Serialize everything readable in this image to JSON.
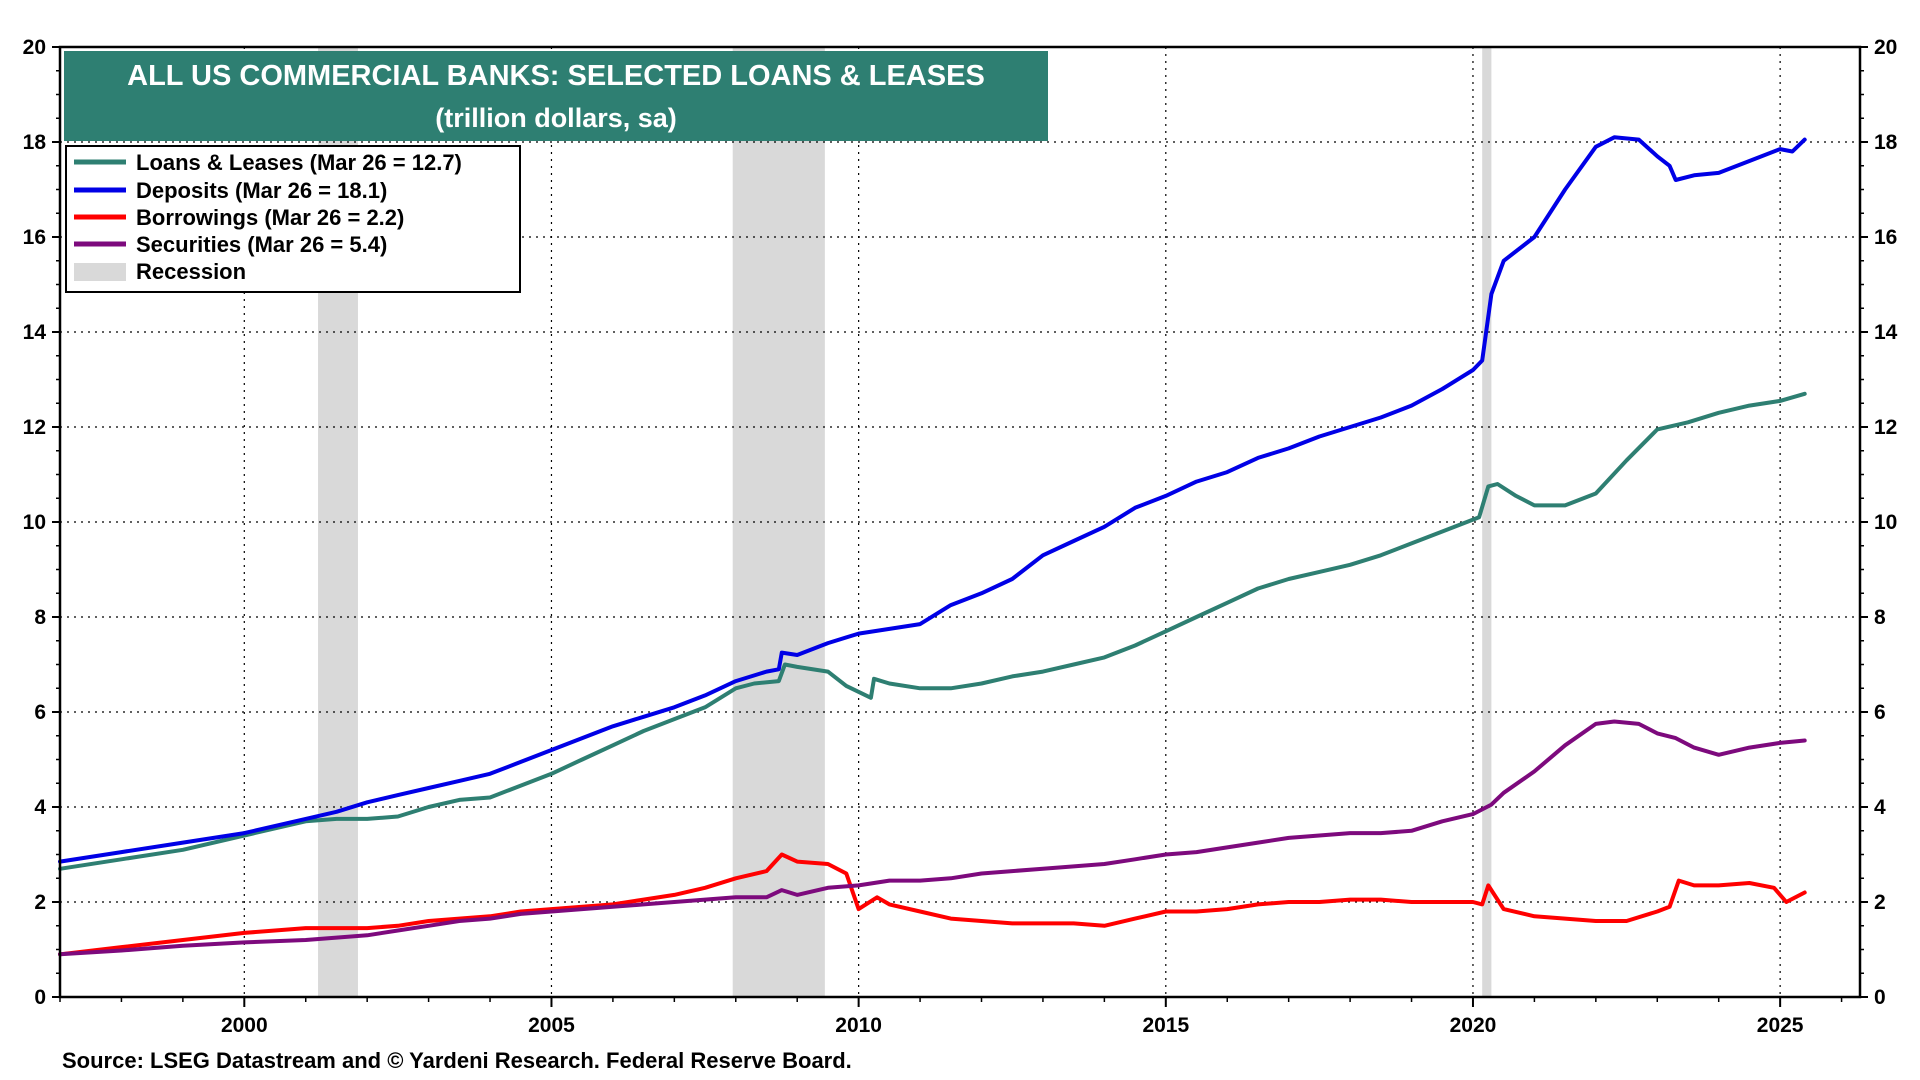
{
  "chart_data": {
    "type": "line",
    "title": "ALL US COMMERCIAL BANKS: SELECTED LOANS & LEASES",
    "subtitle": "(trillion dollars, sa)",
    "source": "Source: LSEG Datastream and © Yardeni Research. Federal Reserve Board.",
    "xlim": [
      1997.0,
      2026.3
    ],
    "ylim": [
      0,
      20
    ],
    "x_ticks": [
      2000,
      2005,
      2010,
      2015,
      2020,
      2025
    ],
    "x_tick_labels": [
      "2000",
      "2005",
      "2010",
      "2015",
      "2020",
      "2025"
    ],
    "y_ticks": [
      0,
      2,
      4,
      6,
      8,
      10,
      12,
      14,
      16,
      18,
      20
    ],
    "y_tick_labels": [
      "0",
      "2",
      "4",
      "6",
      "8",
      "10",
      "12",
      "14",
      "16",
      "18",
      "20"
    ],
    "grid": true,
    "legend_position": "top-left",
    "recessions": [
      [
        2001.2,
        2001.85
      ],
      [
        2007.95,
        2009.45
      ],
      [
        2020.15,
        2020.3
      ]
    ],
    "recession_label": "Recession",
    "recession_color": "#d9d9d9",
    "series": [
      {
        "name": "Loans & Leases (Mar 26 = 12.7)",
        "color": "#2e7f72",
        "points": [
          [
            1997.0,
            2.7
          ],
          [
            1998.0,
            2.9
          ],
          [
            1999.0,
            3.1
          ],
          [
            2000.0,
            3.4
          ],
          [
            2001.0,
            3.7
          ],
          [
            2001.5,
            3.75
          ],
          [
            2002.0,
            3.75
          ],
          [
            2002.5,
            3.8
          ],
          [
            2003.0,
            4.0
          ],
          [
            2003.5,
            4.15
          ],
          [
            2004.0,
            4.2
          ],
          [
            2004.5,
            4.45
          ],
          [
            2005.0,
            4.7
          ],
          [
            2005.5,
            5.0
          ],
          [
            2006.0,
            5.3
          ],
          [
            2006.5,
            5.6
          ],
          [
            2007.0,
            5.85
          ],
          [
            2007.5,
            6.1
          ],
          [
            2008.0,
            6.5
          ],
          [
            2008.3,
            6.6
          ],
          [
            2008.7,
            6.65
          ],
          [
            2008.8,
            7.0
          ],
          [
            2009.0,
            6.95
          ],
          [
            2009.5,
            6.85
          ],
          [
            2009.8,
            6.55
          ],
          [
            2010.2,
            6.3
          ],
          [
            2010.25,
            6.7
          ],
          [
            2010.5,
            6.6
          ],
          [
            2011.0,
            6.5
          ],
          [
            2011.5,
            6.5
          ],
          [
            2012.0,
            6.6
          ],
          [
            2012.5,
            6.75
          ],
          [
            2013.0,
            6.85
          ],
          [
            2013.5,
            7.0
          ],
          [
            2014.0,
            7.15
          ],
          [
            2014.5,
            7.4
          ],
          [
            2015.0,
            7.7
          ],
          [
            2015.5,
            8.0
          ],
          [
            2016.0,
            8.3
          ],
          [
            2016.5,
            8.6
          ],
          [
            2017.0,
            8.8
          ],
          [
            2017.5,
            8.95
          ],
          [
            2018.0,
            9.1
          ],
          [
            2018.5,
            9.3
          ],
          [
            2019.0,
            9.55
          ],
          [
            2019.5,
            9.8
          ],
          [
            2020.0,
            10.05
          ],
          [
            2020.1,
            10.1
          ],
          [
            2020.25,
            10.75
          ],
          [
            2020.4,
            10.8
          ],
          [
            2020.7,
            10.55
          ],
          [
            2021.0,
            10.35
          ],
          [
            2021.5,
            10.35
          ],
          [
            2022.0,
            10.6
          ],
          [
            2022.5,
            11.3
          ],
          [
            2023.0,
            11.95
          ],
          [
            2023.5,
            12.1
          ],
          [
            2024.0,
            12.3
          ],
          [
            2024.5,
            12.45
          ],
          [
            2025.0,
            12.55
          ],
          [
            2025.4,
            12.7
          ]
        ]
      },
      {
        "name": "Deposits (Mar 26 = 18.1)",
        "color": "#0000e6",
        "points": [
          [
            1997.0,
            2.85
          ],
          [
            1998.0,
            3.05
          ],
          [
            1999.0,
            3.25
          ],
          [
            2000.0,
            3.45
          ],
          [
            2001.0,
            3.75
          ],
          [
            2001.5,
            3.9
          ],
          [
            2002.0,
            4.1
          ],
          [
            2002.5,
            4.25
          ],
          [
            2003.0,
            4.4
          ],
          [
            2003.5,
            4.55
          ],
          [
            2004.0,
            4.7
          ],
          [
            2004.5,
            4.95
          ],
          [
            2005.0,
            5.2
          ],
          [
            2005.5,
            5.45
          ],
          [
            2006.0,
            5.7
          ],
          [
            2006.5,
            5.9
          ],
          [
            2007.0,
            6.1
          ],
          [
            2007.5,
            6.35
          ],
          [
            2008.0,
            6.65
          ],
          [
            2008.5,
            6.85
          ],
          [
            2008.7,
            6.9
          ],
          [
            2008.75,
            7.25
          ],
          [
            2009.0,
            7.2
          ],
          [
            2009.5,
            7.45
          ],
          [
            2010.0,
            7.65
          ],
          [
            2010.5,
            7.75
          ],
          [
            2011.0,
            7.85
          ],
          [
            2011.5,
            8.25
          ],
          [
            2012.0,
            8.5
          ],
          [
            2012.5,
            8.8
          ],
          [
            2013.0,
            9.3
          ],
          [
            2013.5,
            9.6
          ],
          [
            2014.0,
            9.9
          ],
          [
            2014.5,
            10.3
          ],
          [
            2015.0,
            10.55
          ],
          [
            2015.5,
            10.85
          ],
          [
            2016.0,
            11.05
          ],
          [
            2016.5,
            11.35
          ],
          [
            2017.0,
            11.55
          ],
          [
            2017.5,
            11.8
          ],
          [
            2018.0,
            12.0
          ],
          [
            2018.5,
            12.2
          ],
          [
            2019.0,
            12.45
          ],
          [
            2019.5,
            12.8
          ],
          [
            2020.0,
            13.2
          ],
          [
            2020.15,
            13.4
          ],
          [
            2020.3,
            14.8
          ],
          [
            2020.5,
            15.5
          ],
          [
            2021.0,
            16.0
          ],
          [
            2021.5,
            17.0
          ],
          [
            2022.0,
            17.9
          ],
          [
            2022.3,
            18.1
          ],
          [
            2022.7,
            18.05
          ],
          [
            2023.0,
            17.7
          ],
          [
            2023.2,
            17.5
          ],
          [
            2023.3,
            17.2
          ],
          [
            2023.6,
            17.3
          ],
          [
            2024.0,
            17.35
          ],
          [
            2024.5,
            17.6
          ],
          [
            2025.0,
            17.85
          ],
          [
            2025.2,
            17.8
          ],
          [
            2025.4,
            18.05
          ]
        ]
      },
      {
        "name": "Borrowings (Mar 26 = 2.2)",
        "color": "#ff0000",
        "points": [
          [
            1997.0,
            0.9
          ],
          [
            1998.0,
            1.05
          ],
          [
            1999.0,
            1.2
          ],
          [
            2000.0,
            1.35
          ],
          [
            2001.0,
            1.45
          ],
          [
            2001.5,
            1.45
          ],
          [
            2002.0,
            1.45
          ],
          [
            2002.5,
            1.5
          ],
          [
            2003.0,
            1.6
          ],
          [
            2003.5,
            1.65
          ],
          [
            2004.0,
            1.7
          ],
          [
            2004.5,
            1.8
          ],
          [
            2005.0,
            1.85
          ],
          [
            2005.5,
            1.9
          ],
          [
            2006.0,
            1.95
          ],
          [
            2006.5,
            2.05
          ],
          [
            2007.0,
            2.15
          ],
          [
            2007.5,
            2.3
          ],
          [
            2008.0,
            2.5
          ],
          [
            2008.5,
            2.65
          ],
          [
            2008.75,
            3.0
          ],
          [
            2009.0,
            2.85
          ],
          [
            2009.5,
            2.8
          ],
          [
            2009.8,
            2.6
          ],
          [
            2010.0,
            1.85
          ],
          [
            2010.3,
            2.1
          ],
          [
            2010.5,
            1.95
          ],
          [
            2011.0,
            1.8
          ],
          [
            2011.5,
            1.65
          ],
          [
            2012.0,
            1.6
          ],
          [
            2012.5,
            1.55
          ],
          [
            2013.0,
            1.55
          ],
          [
            2013.5,
            1.55
          ],
          [
            2014.0,
            1.5
          ],
          [
            2014.5,
            1.65
          ],
          [
            2015.0,
            1.8
          ],
          [
            2015.5,
            1.8
          ],
          [
            2016.0,
            1.85
          ],
          [
            2016.5,
            1.95
          ],
          [
            2017.0,
            2.0
          ],
          [
            2017.5,
            2.0
          ],
          [
            2018.0,
            2.05
          ],
          [
            2018.5,
            2.05
          ],
          [
            2019.0,
            2.0
          ],
          [
            2019.5,
            2.0
          ],
          [
            2020.0,
            2.0
          ],
          [
            2020.15,
            1.95
          ],
          [
            2020.25,
            2.35
          ],
          [
            2020.5,
            1.85
          ],
          [
            2021.0,
            1.7
          ],
          [
            2021.5,
            1.65
          ],
          [
            2022.0,
            1.6
          ],
          [
            2022.5,
            1.6
          ],
          [
            2023.0,
            1.8
          ],
          [
            2023.2,
            1.9
          ],
          [
            2023.35,
            2.45
          ],
          [
            2023.6,
            2.35
          ],
          [
            2024.0,
            2.35
          ],
          [
            2024.5,
            2.4
          ],
          [
            2024.9,
            2.3
          ],
          [
            2025.1,
            2.0
          ],
          [
            2025.4,
            2.2
          ]
        ]
      },
      {
        "name": "Securities (Mar 26 = 5.4)",
        "color": "#7d0a7d",
        "points": [
          [
            1997.0,
            0.9
          ],
          [
            1998.0,
            0.98
          ],
          [
            1999.0,
            1.08
          ],
          [
            2000.0,
            1.15
          ],
          [
            2001.0,
            1.2
          ],
          [
            2001.5,
            1.25
          ],
          [
            2002.0,
            1.3
          ],
          [
            2002.5,
            1.4
          ],
          [
            2003.0,
            1.5
          ],
          [
            2003.5,
            1.6
          ],
          [
            2004.0,
            1.65
          ],
          [
            2004.5,
            1.75
          ],
          [
            2005.0,
            1.8
          ],
          [
            2005.5,
            1.85
          ],
          [
            2006.0,
            1.9
          ],
          [
            2006.5,
            1.95
          ],
          [
            2007.0,
            2.0
          ],
          [
            2007.5,
            2.05
          ],
          [
            2008.0,
            2.1
          ],
          [
            2008.5,
            2.1
          ],
          [
            2008.75,
            2.25
          ],
          [
            2009.0,
            2.15
          ],
          [
            2009.5,
            2.3
          ],
          [
            2010.0,
            2.35
          ],
          [
            2010.5,
            2.45
          ],
          [
            2011.0,
            2.45
          ],
          [
            2011.5,
            2.5
          ],
          [
            2012.0,
            2.6
          ],
          [
            2012.5,
            2.65
          ],
          [
            2013.0,
            2.7
          ],
          [
            2013.5,
            2.75
          ],
          [
            2014.0,
            2.8
          ],
          [
            2014.5,
            2.9
          ],
          [
            2015.0,
            3.0
          ],
          [
            2015.5,
            3.05
          ],
          [
            2016.0,
            3.15
          ],
          [
            2016.5,
            3.25
          ],
          [
            2017.0,
            3.35
          ],
          [
            2017.5,
            3.4
          ],
          [
            2018.0,
            3.45
          ],
          [
            2018.5,
            3.45
          ],
          [
            2019.0,
            3.5
          ],
          [
            2019.5,
            3.7
          ],
          [
            2020.0,
            3.85
          ],
          [
            2020.3,
            4.05
          ],
          [
            2020.5,
            4.3
          ],
          [
            2021.0,
            4.75
          ],
          [
            2021.5,
            5.3
          ],
          [
            2022.0,
            5.75
          ],
          [
            2022.3,
            5.8
          ],
          [
            2022.7,
            5.75
          ],
          [
            2023.0,
            5.55
          ],
          [
            2023.3,
            5.45
          ],
          [
            2023.6,
            5.25
          ],
          [
            2024.0,
            5.1
          ],
          [
            2024.5,
            5.25
          ],
          [
            2025.0,
            5.35
          ],
          [
            2025.4,
            5.4
          ]
        ]
      }
    ]
  }
}
